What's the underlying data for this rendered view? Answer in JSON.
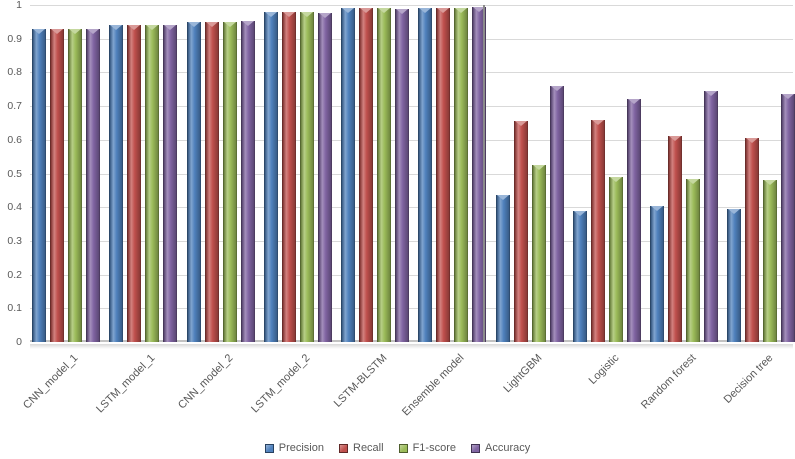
{
  "chart_data": {
    "type": "bar",
    "title": "",
    "xlabel": "",
    "ylabel": "",
    "ylim": [
      0,
      1
    ],
    "tick_step": 0.1,
    "grid": true,
    "legend_position": "bottom",
    "yticks": [
      "1",
      "0.9",
      "0.8",
      "0.7",
      "0.6",
      "0.5",
      "0.4",
      "0.3",
      "0.2",
      "0.1",
      "0"
    ],
    "categories": [
      "CNN_model_1",
      "LSTM_model_1",
      "CNN_model_2",
      "LSTM_model_2",
      "LSTM-BLSTM",
      "Ensemble model",
      "LightGBM",
      "Logistic",
      "Random forest",
      "Decision tree"
    ],
    "series": [
      {
        "name": "Precision",
        "color": "#4F81BD",
        "values": [
          0.93,
          0.94,
          0.95,
          0.98,
          0.99,
          0.99,
          0.435,
          0.39,
          0.405,
          0.395
        ]
      },
      {
        "name": "Recall",
        "color": "#C0504D",
        "values": [
          0.93,
          0.94,
          0.95,
          0.98,
          0.99,
          0.99,
          0.655,
          0.66,
          0.61,
          0.605
        ]
      },
      {
        "name": "F1-score",
        "color": "#9BBB59",
        "values": [
          0.93,
          0.94,
          0.95,
          0.98,
          0.99,
          0.992,
          0.525,
          0.49,
          0.485,
          0.48
        ]
      },
      {
        "name": "Accuracy",
        "color": "#8064A2",
        "values": [
          0.93,
          0.941,
          0.954,
          0.977,
          0.987,
          0.994,
          0.76,
          0.72,
          0.744,
          0.736
        ]
      }
    ]
  }
}
